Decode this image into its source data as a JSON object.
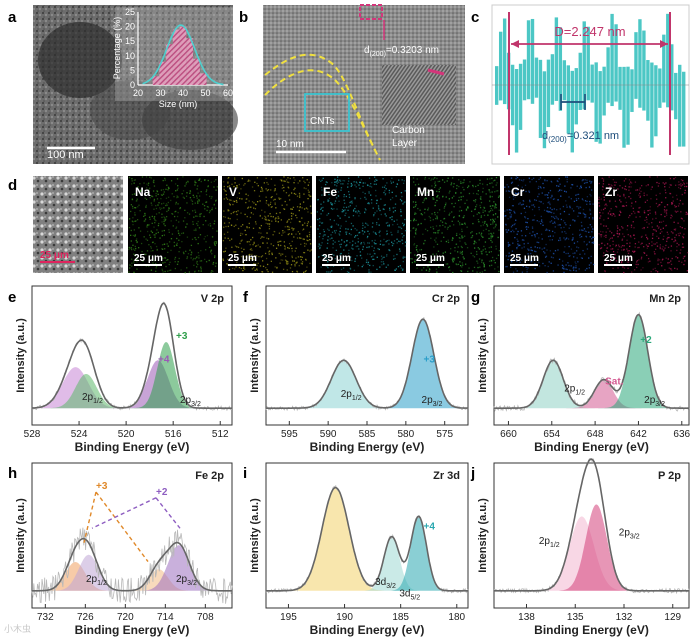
{
  "panel_labels": [
    "a",
    "b",
    "c",
    "d",
    "e",
    "f",
    "g",
    "h",
    "i",
    "j"
  ],
  "panel_a": {
    "scale_bar": "100 nm",
    "inset": {
      "xlabel": "Size (nm)",
      "ylabel": "Percentage (%)",
      "xticks": [
        "20",
        "30",
        "40",
        "50",
        "60"
      ],
      "yticks": [
        "0",
        "5",
        "10",
        "15",
        "20",
        "25"
      ],
      "x": [
        28,
        31,
        34,
        37,
        40,
        43,
        46,
        49
      ],
      "y": [
        3,
        8,
        14,
        19,
        20,
        16,
        9,
        4
      ]
    }
  },
  "panel_b": {
    "spacing_label": "d",
    "spacing_sub": "(200)",
    "spacing_value": "=0.3203 nm",
    "cnt_label": "CNTs",
    "carbon_label_1": "Carbon",
    "carbon_label_2": "Layer",
    "scale_bar": "10 nm"
  },
  "panel_c": {
    "distance_label": "D=2.247 nm",
    "spacing_label": "d",
    "spacing_sub": "(200)",
    "spacing_value": "=0.321 nm"
  },
  "panel_d": {
    "scale": "25 μm",
    "maps": [
      {
        "element": "Na",
        "color": "#2f7a17"
      },
      {
        "element": "V",
        "color": "#8f8a16"
      },
      {
        "element": "Fe",
        "color": "#1a8a92"
      },
      {
        "element": "Mn",
        "color": "#2a8a2a"
      },
      {
        "element": "Cr",
        "color": "#1d4fa8"
      },
      {
        "element": "Zr",
        "color": "#a0154c"
      }
    ]
  },
  "xps_common": {
    "ylabel": "Intensity (a.u.)",
    "xlabel": "Binding Energy (eV)"
  },
  "chart_data": [
    {
      "panel": "e",
      "type": "line",
      "title": "V 2p",
      "xlabel": "Binding Energy (eV)",
      "ylabel": "Intensity (a.u.)",
      "xlim": [
        528,
        511
      ],
      "xticks": [
        "528",
        "524",
        "520",
        "516",
        "512"
      ],
      "fits": [
        {
          "name": "V4+ 2p1/2",
          "center": 524.3,
          "height": 0.36,
          "width": 1.1,
          "color": "#c785d6"
        },
        {
          "name": "V3+ 2p1/2",
          "center": 523.4,
          "height": 0.3,
          "width": 0.9,
          "color": "#5cb86a"
        },
        {
          "name": "V4+ 2p3/2",
          "center": 517.3,
          "height": 0.42,
          "width": 0.9,
          "color": "#9b59b6"
        },
        {
          "name": "V3+ 2p3/2",
          "center": 516.6,
          "height": 0.58,
          "width": 0.75,
          "color": "#2e9e4a"
        }
      ],
      "annotations": [
        "+3",
        "+4",
        "2p1/2",
        "2p3/2"
      ]
    },
    {
      "panel": "f",
      "type": "line",
      "title": "Cr 2p",
      "xlabel": "Binding Energy (eV)",
      "ylabel": "Intensity (a.u.)",
      "xlim": [
        598,
        572
      ],
      "xticks": [
        "595",
        "590",
        "585",
        "580",
        "575"
      ],
      "fits": [
        {
          "name": "Cr3+ 2p1/2",
          "center": 588.0,
          "height": 0.42,
          "width": 1.6,
          "color": "#8dd3d3"
        },
        {
          "name": "Cr3+ 2p3/2",
          "center": 577.8,
          "height": 0.78,
          "width": 1.4,
          "color": "#2a9ec9"
        }
      ],
      "annotations": [
        "+3",
        "2p1/2",
        "2p3/2"
      ]
    },
    {
      "panel": "g",
      "type": "line",
      "title": "Mn 2p",
      "xlabel": "Binding Energy (eV)",
      "ylabel": "Intensity (a.u.)",
      "xlim": [
        662,
        635
      ],
      "xticks": [
        "660",
        "654",
        "648",
        "642",
        "636"
      ],
      "fits": [
        {
          "name": "Mn2+ 2p1/2",
          "center": 653.8,
          "height": 0.42,
          "width": 1.4,
          "color": "#8fd1c5"
        },
        {
          "name": "Mn Sat.",
          "center": 646.8,
          "height": 0.25,
          "width": 1.3,
          "color": "#d45a92"
        },
        {
          "name": "Mn2+ 2p3/2",
          "center": 642.0,
          "height": 0.82,
          "width": 1.3,
          "color": "#2aa87a"
        }
      ],
      "annotations": [
        "+2",
        "Sat.",
        "2p1/2",
        "2p3/2"
      ]
    },
    {
      "panel": "h",
      "type": "line",
      "title": "Fe 2p",
      "xlabel": "Binding Energy (eV)",
      "ylabel": "Intensity (a.u.)",
      "xlim": [
        734,
        704
      ],
      "xticks": [
        "732",
        "726",
        "720",
        "714",
        "708"
      ],
      "fits": [
        {
          "name": "Fe3+ 2p1/2",
          "center": 727.5,
          "height": 0.24,
          "width": 1.5,
          "color": "#f0a060"
        },
        {
          "name": "Fe2+ 2p1/2",
          "center": 725.5,
          "height": 0.3,
          "width": 1.5,
          "color": "#bfa6d6"
        },
        {
          "name": "Fe3+ 2p3/2",
          "center": 715.0,
          "height": 0.18,
          "width": 1.4,
          "color": "#f3bb85"
        },
        {
          "name": "Fe2+ 2p3/2",
          "center": 712.0,
          "height": 0.38,
          "width": 1.6,
          "color": "#9c6fc0"
        }
      ],
      "annotations": [
        "+3",
        "+2",
        "2p1/2",
        "2p3/2"
      ]
    },
    {
      "panel": "i",
      "type": "line",
      "title": "Zr 3d",
      "xlabel": "Binding Energy (eV)",
      "ylabel": "Intensity (a.u.)",
      "xlim": [
        197,
        179
      ],
      "xticks": [
        "195",
        "190",
        "185",
        "180"
      ],
      "fits": [
        {
          "name": "broad",
          "center": 190.8,
          "height": 0.86,
          "width": 1.2,
          "color": "#f3d26a"
        },
        {
          "name": "Zr 3d3/2",
          "center": 185.8,
          "height": 0.45,
          "width": 0.7,
          "color": "#9fd8d4"
        },
        {
          "name": "Zr 3d5/2",
          "center": 183.4,
          "height": 0.62,
          "width": 0.7,
          "color": "#2aa8b0"
        }
      ],
      "annotations": [
        "+4",
        "3d3/2",
        "3d5/2"
      ]
    },
    {
      "panel": "j",
      "type": "line",
      "title": "P 2p",
      "xlabel": "Binding Energy (eV)",
      "ylabel": "Intensity (a.u.)",
      "xlim": [
        140,
        128
      ],
      "xticks": [
        "138",
        "135",
        "132",
        "129"
      ],
      "fits": [
        {
          "name": "P 2p1/2",
          "center": 134.6,
          "height": 0.62,
          "width": 0.75,
          "color": "#f2b6d0"
        },
        {
          "name": "P 2p3/2",
          "center": 133.7,
          "height": 0.72,
          "width": 0.65,
          "color": "#d43f7a"
        }
      ],
      "annotations": [
        "2p1/2",
        "2p3/2"
      ]
    }
  ],
  "watermark": "小木虫"
}
